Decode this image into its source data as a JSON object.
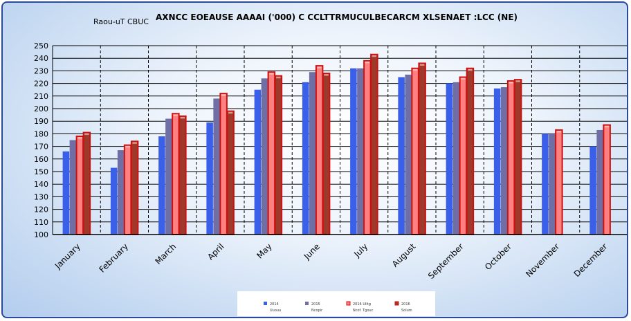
{
  "chart_data": {
    "type": "bar",
    "title": "AXNCC EOEAUSE AAAAI ('000) C CCLTTRMUCULBECARCM XLSENAET :LCC (NE)",
    "subtitle": "Raou-uT CBUC",
    "xlabel": "",
    "ylabel": "",
    "ylim": [
      100,
      250
    ],
    "yticks": [
      100,
      110,
      120,
      130,
      140,
      150,
      160,
      170,
      180,
      190,
      200,
      210,
      220,
      230,
      240,
      250
    ],
    "grid": true,
    "legend_position": "bottom",
    "categories": [
      "January",
      "February",
      "March",
      "April",
      "May",
      "June",
      "July",
      "August",
      "September",
      "October",
      "November",
      "December"
    ],
    "series": [
      {
        "name": "2014",
        "legend_sub": "Uuouu",
        "color": "#3a5fe8",
        "style": "plain",
        "values": [
          166,
          153,
          178,
          189,
          215,
          221,
          232,
          225,
          220,
          216,
          180,
          170
        ]
      },
      {
        "name": "2015",
        "legend_sub": "Ncopir",
        "color": "#6f6fa6",
        "style": "plain",
        "values": [
          175,
          167,
          192,
          208,
          224,
          229,
          232,
          227,
          221,
          217,
          180,
          183
        ]
      },
      {
        "name": "2016 Ulitg",
        "legend_sub": "Ncof. Tgouc",
        "color": "#ff8080",
        "style": "outlined",
        "values": [
          178,
          171,
          196,
          212,
          229,
          234,
          238,
          232,
          225,
          222,
          183,
          187
        ]
      },
      {
        "name": "2016",
        "legend_sub": "Solum",
        "color": "#9e3a2c",
        "style": "outlined",
        "values": [
          181,
          174,
          194,
          198,
          226,
          228,
          243,
          236,
          232,
          223,
          null,
          null
        ]
      }
    ]
  }
}
